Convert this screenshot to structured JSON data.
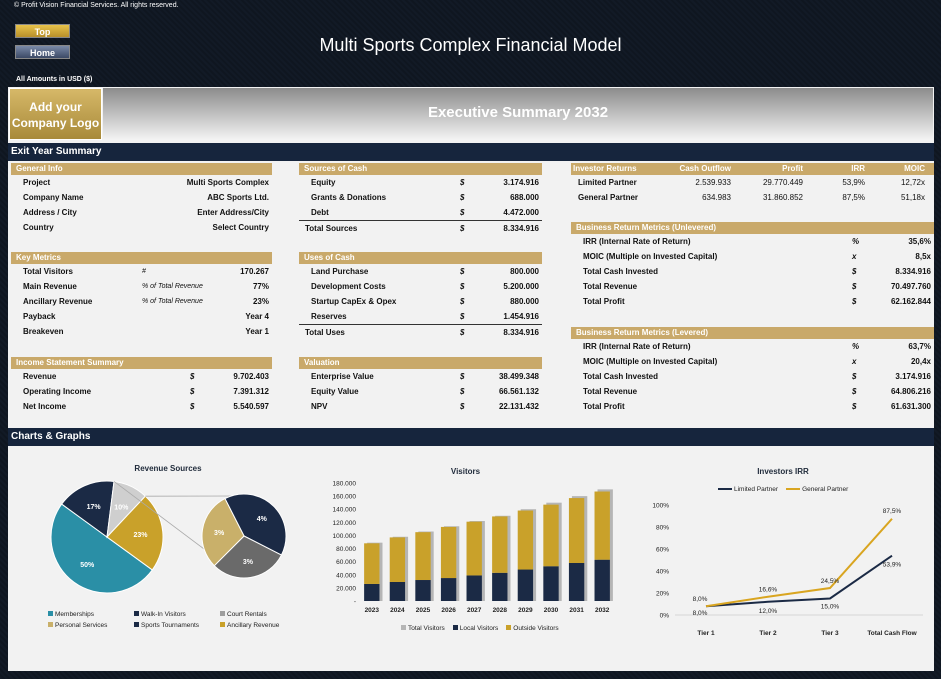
{
  "copyright": "© Profit Vision Financial Services. All rights reserved.",
  "nav": {
    "top_label": "Top",
    "home_label": "Home"
  },
  "title": "Multi Sports Complex Financial Model",
  "amounts": "All Amounts in  USD ($)",
  "logo": {
    "line1": "Add your",
    "line2": "Company Logo"
  },
  "exec_title": "Executive Summary 2032",
  "sections": {
    "exit": "Exit Year Summary",
    "charts": "Charts & Graphs"
  },
  "general_info": {
    "header": "General Info",
    "rows": [
      {
        "label": "Project",
        "value": "Multi Sports Complex"
      },
      {
        "label": "Company Name",
        "value": "ABC Sports Ltd."
      },
      {
        "label": "Address / City",
        "value": "Enter Address/City"
      },
      {
        "label": "Country",
        "value": "Select Country"
      }
    ]
  },
  "key_metrics": {
    "header": "Key Metrics",
    "rows": [
      {
        "label": "Total Visitors",
        "note": "#",
        "value": "170.267"
      },
      {
        "label": "Main Revenue",
        "note": "% of Total Revenue",
        "value": "77%"
      },
      {
        "label": "Ancillary Revenue",
        "note": "% of Total Revenue",
        "value": "23%"
      },
      {
        "label": "Payback",
        "note": "",
        "value": "Year 4"
      },
      {
        "label": "Breakeven",
        "note": "",
        "value": "Year 1"
      }
    ]
  },
  "income": {
    "header": "Income Statement Summary",
    "rows": [
      {
        "label": "Revenue",
        "sym": "$",
        "value": "9.702.403"
      },
      {
        "label": "Operating Income",
        "sym": "$",
        "value": "7.391.312"
      },
      {
        "label": "Net Income",
        "sym": "$",
        "value": "5.540.597"
      }
    ]
  },
  "sources": {
    "header": "Sources of Cash",
    "rows": [
      {
        "label": "Equity",
        "sym": "$",
        "value": "3.174.916"
      },
      {
        "label": "Grants & Donations",
        "sym": "$",
        "value": "688.000"
      },
      {
        "label": "Debt",
        "sym": "$",
        "value": "4.472.000"
      }
    ],
    "total": {
      "label": "Total Sources",
      "sym": "$",
      "value": "8.334.916"
    }
  },
  "uses": {
    "header": "Uses of Cash",
    "rows": [
      {
        "label": "Land Purchase",
        "sym": "$",
        "value": "800.000"
      },
      {
        "label": "Development Costs",
        "sym": "$",
        "value": "5.200.000"
      },
      {
        "label": "Startup CapEx & Opex",
        "sym": "$",
        "value": "880.000"
      },
      {
        "label": "Reserves",
        "sym": "$",
        "value": "1.454.916"
      }
    ],
    "total": {
      "label": "Total Uses",
      "sym": "$",
      "value": "8.334.916"
    }
  },
  "valuation": {
    "header": "Valuation",
    "rows": [
      {
        "label": "Enterprise Value",
        "sym": "$",
        "value": "38.499.348"
      },
      {
        "label": "Equity Value",
        "sym": "$",
        "value": "66.561.132"
      },
      {
        "label": "NPV",
        "sym": "$",
        "value": "22.131.432"
      }
    ]
  },
  "investor_returns": {
    "headers": [
      "Investor Returns",
      "Cash Outflow",
      "Profit",
      "IRR",
      "MOIC"
    ],
    "rows": [
      [
        "Limited Partner",
        "2.539.933",
        "29.770.449",
        "53,9%",
        "12,72x"
      ],
      [
        "General Partner",
        "634.983",
        "31.860.852",
        "87,5%",
        "51,18x"
      ]
    ]
  },
  "unlevered": {
    "header": "Business Return Metrics (Unlevered)",
    "rows": [
      {
        "label": "IRR (Internal Rate of Return)",
        "sym": "%",
        "value": "35,6%"
      },
      {
        "label": "MOIC (Multiple on Invested Capital)",
        "sym": "x",
        "value": "8,5x"
      },
      {
        "label": "Total Cash Invested",
        "sym": "$",
        "value": "8.334.916"
      },
      {
        "label": "Total Revenue",
        "sym": "$",
        "value": "70.497.760"
      },
      {
        "label": "Total Profit",
        "sym": "$",
        "value": "62.162.844"
      }
    ]
  },
  "levered": {
    "header": "Business Return Metrics (Levered)",
    "rows": [
      {
        "label": "IRR (Internal Rate of Return)",
        "sym": "%",
        "value": "63,7%"
      },
      {
        "label": "MOIC (Multiple on Invested Capital)",
        "sym": "x",
        "value": "20,4x"
      },
      {
        "label": "Total Cash Invested",
        "sym": "$",
        "value": "3.174.916"
      },
      {
        "label": "Total Revenue",
        "sym": "$",
        "value": "64.806.216"
      },
      {
        "label": "Total Profit",
        "sym": "$",
        "value": "61.631.300"
      }
    ]
  },
  "chart_data": [
    {
      "type": "pie",
      "title": "Revenue Sources",
      "labels": [
        "Memberships",
        "Walk-In Visitors",
        "Court Rentals",
        "Personal Services",
        "Sports Tournaments",
        "Ancillary Revenue"
      ],
      "main_values": [
        50,
        17,
        10,
        23
      ],
      "main_slice_labels": [
        "50%",
        "17%",
        "10%",
        "23%"
      ],
      "main_colors": [
        "#2a8fa6",
        "#1b2a45",
        "#cfcfcf",
        "#c9a12a"
      ],
      "sub_values": [
        4,
        3,
        3
      ],
      "sub_slice_labels": [
        "4%",
        "3%",
        "3%"
      ],
      "sub_colors": [
        "#1b2a45",
        "#6a6a6a",
        "#c9b06a"
      ],
      "legend_colors": [
        "#2a8fa6",
        "#1b2a45",
        "#9e9e9e",
        "#c9b06a",
        "#1b2a45",
        "#c9a12a"
      ]
    },
    {
      "type": "bar",
      "title": "Visitors",
      "categories": [
        "2023",
        "2024",
        "2025",
        "2026",
        "2027",
        "2028",
        "2029",
        "2030",
        "2031",
        "2032"
      ],
      "series": [
        {
          "name": "Total Visitors",
          "values": [
            89000,
            98000,
            106000,
            114000,
            122000,
            130000,
            140000,
            150000,
            160000,
            170267
          ],
          "color": "#b5b5b5"
        },
        {
          "name": "Local Visitors",
          "values": [
            26000,
            29000,
            32000,
            35000,
            39000,
            43000,
            48000,
            53000,
            58000,
            63000
          ],
          "color": "#1b2a45"
        },
        {
          "name": "Outside Visitors",
          "values": [
            62000,
            68000,
            73000,
            78000,
            82000,
            86000,
            90000,
            94000,
            99000,
            104000
          ],
          "color": "#c9a12a"
        }
      ],
      "ylim": [
        0,
        180000
      ],
      "yticks": [
        "-",
        "20.000",
        "40.000",
        "60.000",
        "80.000",
        "100.000",
        "120.000",
        "140.000",
        "160.000",
        "180.000"
      ]
    },
    {
      "type": "line",
      "title": "Investors IRR",
      "categories": [
        "Tier 1",
        "Tier 2",
        "Tier 3",
        "Total Cash Flow"
      ],
      "series": [
        {
          "name": "Limited Partner",
          "values": [
            8.0,
            12.0,
            15.0,
            53.9
          ],
          "labels": [
            "8,0%",
            "12,0%",
            "15,0%",
            "53,9%"
          ],
          "color": "#1b2a45"
        },
        {
          "name": "General Partner",
          "values": [
            8.0,
            16.6,
            24.5,
            87.5
          ],
          "labels": [
            "8,0%",
            "16,6%",
            "24,5%",
            "87,5%"
          ],
          "color": "#d9a520"
        }
      ],
      "ylim": [
        0,
        100
      ],
      "yticks": [
        "0%",
        "20%",
        "40%",
        "60%",
        "80%",
        "100%"
      ]
    }
  ]
}
